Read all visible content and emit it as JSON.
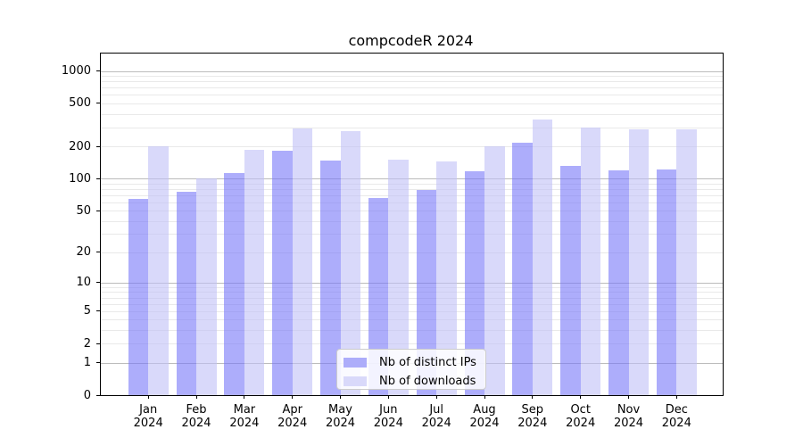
{
  "chart_data": {
    "type": "bar",
    "title": "compcodeR 2024",
    "categories": [
      "Jan",
      "Feb",
      "Mar",
      "Apr",
      "May",
      "Jun",
      "Jul",
      "Aug",
      "Sep",
      "Oct",
      "Nov",
      "Dec"
    ],
    "category_year": "2024",
    "series": [
      {
        "name": "Nb of distinct IPs",
        "color": "rgba(118,118,248,0.6)",
        "swatch_color": "#adadfa",
        "values": [
          65,
          75,
          112,
          182,
          148,
          66,
          78,
          118,
          216,
          131,
          120,
          122
        ]
      },
      {
        "name": "Nb of downloads",
        "color": "rgba(192,192,247,0.6)",
        "swatch_color": "#d9d9fa",
        "values": [
          201,
          100,
          185,
          291,
          276,
          149,
          146,
          201,
          356,
          299,
          288,
          290
        ]
      }
    ],
    "yscale": "log1p",
    "yticks": [
      0,
      1,
      2,
      5,
      10,
      20,
      50,
      100,
      200,
      500,
      1000
    ],
    "ylim": [
      0,
      1450
    ],
    "xlabel": "",
    "ylabel": "",
    "grid": "horizontal log grid, major at powers of 10, faint minors at 2-9 per decade",
    "legend_position": "inside plot, lower center"
  },
  "colors": {
    "background": "#ffffff",
    "axis": "#000000",
    "grid_major": "#bcbcbc",
    "grid_minor": "#e9e9e9",
    "legend_border": "#cccccc"
  }
}
